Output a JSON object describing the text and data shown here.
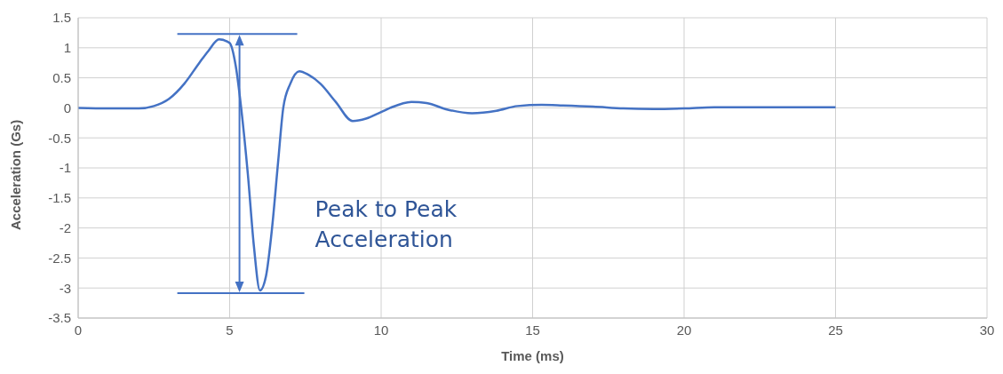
{
  "chart_data": {
    "type": "line",
    "xlabel": "Time (ms)",
    "ylabel": "Acceleration (Gs)",
    "x": [
      0,
      1,
      2,
      2.5,
      3,
      3.5,
      4,
      4.3,
      4.65,
      5,
      5.2,
      5.38,
      5.6,
      5.8,
      6,
      6.2,
      6.4,
      6.6,
      6.77,
      7,
      7.3,
      7.6,
      8,
      8.5,
      9.06,
      9.5,
      10,
      10.3,
      11,
      11.5,
      12.2,
      13,
      13.8,
      14.5,
      15.3,
      16,
      17,
      18,
      19,
      20,
      21,
      22,
      23,
      24,
      25
    ],
    "series": [
      {
        "color": "#4472c4",
        "values": [
          0,
          -0.01,
          -0.01,
          0.03,
          0.15,
          0.4,
          0.75,
          0.95,
          1.14,
          1.08,
          0.7,
          0,
          -1.1,
          -2.3,
          -3.04,
          -2.8,
          -2.0,
          -0.9,
          0,
          0.4,
          0.61,
          0.55,
          0.4,
          0.1,
          -0.22,
          -0.18,
          -0.07,
          0,
          0.1,
          0.08,
          -0.03,
          -0.09,
          -0.05,
          0.03,
          0.05,
          0.04,
          0.02,
          -0.01,
          -0.02,
          -0.01,
          0.01,
          0.01,
          0.01,
          0.01,
          0.01
        ]
      }
    ],
    "xlim": [
      0,
      30
    ],
    "xticks": [
      0,
      5,
      10,
      15,
      20,
      25,
      30
    ],
    "ylim": [
      -3.5,
      1.5
    ],
    "yticks": [
      -3.5,
      -3,
      -2.5,
      -2,
      -1.5,
      -1,
      -0.5,
      0,
      0.5,
      1,
      1.5
    ],
    "grid": true,
    "marker": "none",
    "line_style": "solid",
    "annotations": [
      "Peak to Peak Acceleration"
    ]
  }
}
